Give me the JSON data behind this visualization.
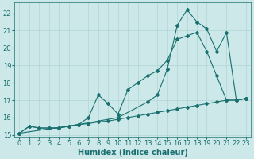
{
  "bg_color": "#cce8e8",
  "grid_color": "#b0d4d4",
  "line_color": "#1a7070",
  "xlabel": "Humidex (Indice chaleur)",
  "xlabel_fontsize": 7,
  "tick_fontsize": 6,
  "xlim": [
    -0.5,
    23.5
  ],
  "ylim": [
    14.9,
    22.6
  ],
  "yticks": [
    15,
    16,
    17,
    18,
    19,
    20,
    21,
    22
  ],
  "xticks": [
    0,
    1,
    2,
    3,
    4,
    5,
    6,
    7,
    8,
    9,
    10,
    11,
    12,
    13,
    14,
    15,
    16,
    17,
    18,
    19,
    20,
    21,
    22,
    23
  ],
  "line1_x": [
    0,
    1,
    2,
    3,
    4,
    5,
    6,
    7,
    8,
    9,
    10,
    11,
    12,
    13,
    14,
    15,
    16,
    17,
    18,
    19,
    20,
    21,
    22,
    23
  ],
  "line1_y": [
    15.1,
    15.5,
    15.4,
    15.4,
    15.4,
    15.5,
    15.6,
    15.65,
    15.75,
    15.8,
    15.9,
    16.0,
    16.1,
    16.2,
    16.3,
    16.4,
    16.5,
    16.6,
    16.7,
    16.8,
    16.9,
    17.0,
    17.0,
    17.1
  ],
  "line2_x": [
    0,
    1,
    2,
    3,
    4,
    5,
    6,
    7,
    8,
    9,
    10,
    11,
    12,
    13,
    14,
    15,
    16,
    17,
    18,
    19,
    20,
    21,
    22,
    23
  ],
  "line2_y": [
    15.1,
    15.5,
    15.4,
    15.4,
    15.4,
    15.5,
    15.6,
    16.0,
    17.3,
    16.8,
    16.2,
    17.6,
    18.0,
    18.4,
    18.7,
    19.3,
    20.5,
    20.7,
    20.9,
    19.8,
    18.4,
    17.0,
    17.0,
    17.1
  ],
  "line3_x": [
    0,
    6,
    10,
    13,
    14,
    15,
    16,
    17,
    18,
    19,
    20,
    21,
    22,
    23
  ],
  "line3_y": [
    15.1,
    15.6,
    16.0,
    16.9,
    17.3,
    18.8,
    21.3,
    22.2,
    21.5,
    21.1,
    19.8,
    20.9,
    17.0,
    17.1
  ]
}
